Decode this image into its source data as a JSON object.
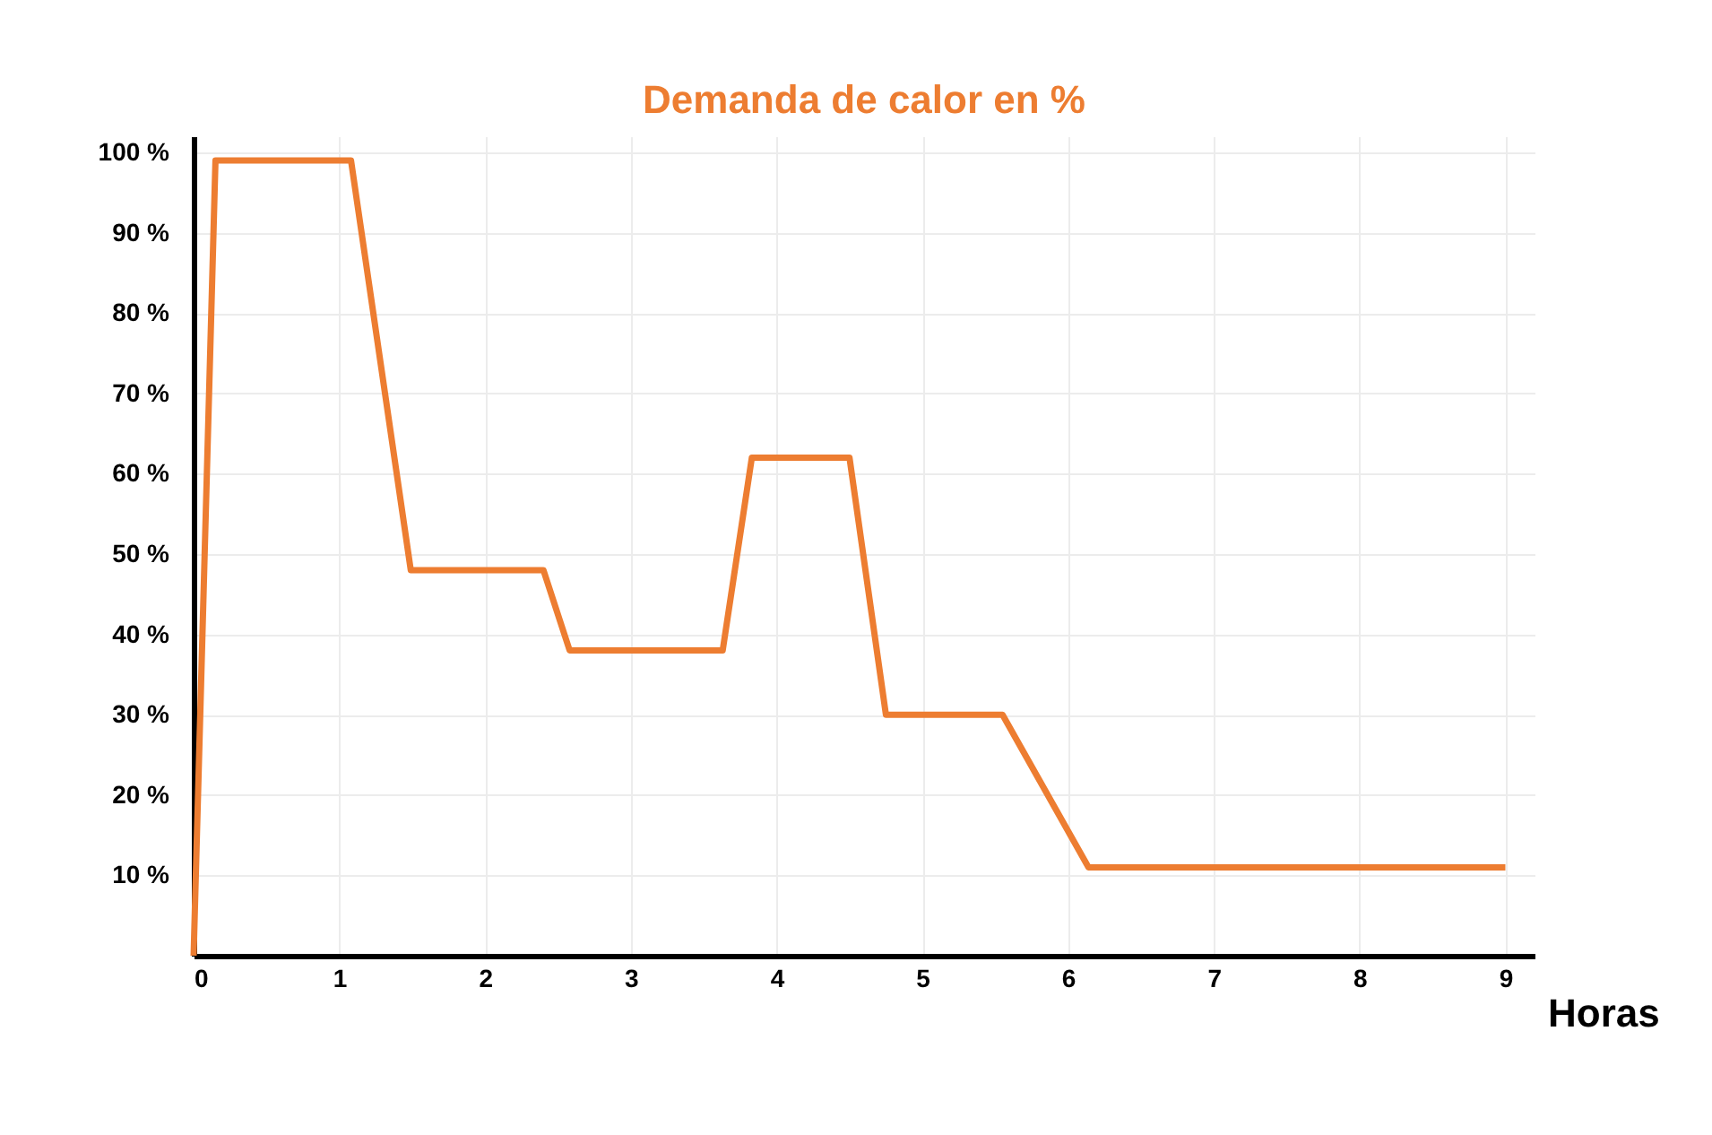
{
  "chart_data": {
    "type": "line",
    "title": "Demanda de calor en %",
    "xlabel": "Horas",
    "x": [
      0,
      0.15,
      1.08,
      1.49,
      2.4,
      2.58,
      3.63,
      3.83,
      4.5,
      4.75,
      5.55,
      6.14,
      9
    ],
    "series": [
      {
        "color": "#ed7d31",
        "values": [
          0,
          99,
          99,
          48,
          48,
          38,
          38,
          62,
          62,
          30,
          30,
          11,
          11
        ]
      }
    ],
    "xlim": [
      0,
      9.2
    ],
    "ylim": [
      0,
      102
    ],
    "xticks": [
      0,
      1,
      2,
      3,
      4,
      5,
      6,
      7,
      8,
      9
    ],
    "yticks": [
      {
        "value": 10,
        "label": "10 %"
      },
      {
        "value": 20,
        "label": "20 %"
      },
      {
        "value": 30,
        "label": "30 %"
      },
      {
        "value": 40,
        "label": "40 %"
      },
      {
        "value": 50,
        "label": "50 %"
      },
      {
        "value": 60,
        "label": "60 %"
      },
      {
        "value": 70,
        "label": "70 %"
      },
      {
        "value": 80,
        "label": "80 %"
      },
      {
        "value": 90,
        "label": "90 %"
      },
      {
        "value": 100,
        "label": "100 %"
      }
    ],
    "grid": true,
    "marker": "none",
    "line_style": "solid"
  }
}
